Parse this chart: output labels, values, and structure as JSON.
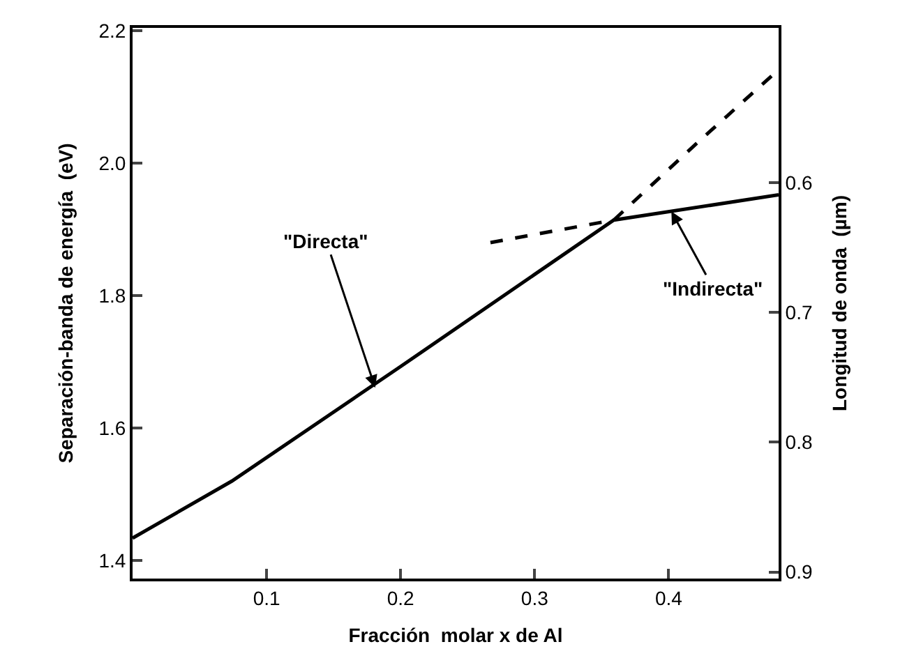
{
  "chart_data": {
    "type": "line",
    "xlabel": "Fracción  molar x de Al",
    "ylabel": "Separación-banda de energía  (eV)",
    "y2label": "Longitud de onda  (µm)",
    "series": [
      {
        "color": "#000000",
        "line_style": "solid",
        "x": [
          0,
          0.074,
          0.2,
          0.359,
          0.482
        ],
        "values": [
          1.434,
          1.52,
          1.693,
          1.914,
          1.952
        ]
      },
      {
        "color": "#000000",
        "line_style": "dashed",
        "x": [
          0.267,
          0.359,
          0.421,
          0.482
        ],
        "values": [
          1.88,
          1.914,
          2.03,
          2.141
        ]
      }
    ],
    "xlim": [
      0.0,
      0.482
    ],
    "xticks": [
      0.1,
      0.2,
      0.3,
      0.4
    ],
    "ylim": [
      1.373,
      2.204
    ],
    "yticks": [
      1.4,
      1.6,
      1.8,
      {
        "value": 2,
        "label": "2.0"
      },
      2.2
    ],
    "y2lim": [
      0.905,
      0.481
    ],
    "y2ticks": [
      0.6,
      0.7,
      0.8,
      0.9
    ],
    "annotations": [
      {
        "text": "\"Directa\"",
        "x": 0.181,
        "y": 1.661
      },
      {
        "text": "\"Indirecta\"",
        "x": 0.402,
        "y": 1.927
      }
    ]
  }
}
